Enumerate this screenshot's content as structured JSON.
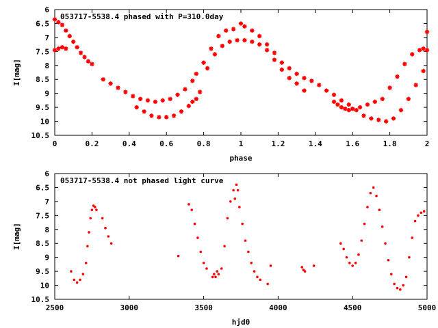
{
  "chart_data": [
    {
      "type": "scatter",
      "title": "053717-5538.4 phased with P=310.0day",
      "xlabel": "phase",
      "ylabel": "I[mag]",
      "xlim": [
        0,
        2
      ],
      "ylim": [
        6,
        10.5
      ],
      "y_inverted": true,
      "x_ticks": [
        "0",
        "0.2",
        "0.4",
        "0.6",
        "0.8",
        "1",
        "1.2",
        "1.4",
        "1.6",
        "1.8",
        "2"
      ],
      "y_ticks": [
        "6",
        "6.5",
        "7",
        "7.5",
        "8",
        "8.5",
        "9",
        "9.5",
        "10",
        "10.5"
      ],
      "grid": false,
      "marker_color": "#ff0000",
      "marker": "star",
      "series": [
        {
          "x": [
            0.0,
            0.02,
            0.04,
            0.06,
            0.08,
            0.1,
            0.12,
            0.14,
            0.16,
            0.18,
            0.2,
            0.26,
            0.3,
            0.34,
            0.38,
            0.42,
            0.46,
            0.5,
            0.54,
            0.58,
            0.62,
            0.66,
            0.7,
            0.74,
            0.76,
            0.8,
            0.84,
            0.88,
            0.92,
            0.96,
            1.0,
            1.02,
            1.06,
            1.1,
            1.14,
            1.18,
            1.22,
            1.26,
            1.3,
            1.34,
            1.38,
            1.42,
            1.46,
            1.5,
            1.54,
            1.58,
            1.62,
            1.66,
            1.7,
            1.74,
            1.78,
            1.82,
            1.86,
            1.9,
            1.94,
            1.98,
            2.0,
            0.0,
            0.02,
            0.04,
            0.06,
            0.44,
            0.48,
            0.52,
            0.56,
            0.6,
            0.64,
            0.68,
            0.72,
            0.74,
            0.76,
            0.78,
            0.82,
            0.86,
            0.9,
            0.94,
            0.98,
            1.02,
            1.06,
            1.1,
            1.14,
            1.18,
            1.22,
            1.26,
            1.3,
            1.34,
            1.5,
            1.52,
            1.54,
            1.56,
            1.58,
            1.6,
            1.64,
            1.68,
            1.72,
            1.76,
            1.8,
            1.84,
            1.88,
            1.92,
            1.96,
            1.98,
            2.0
          ],
          "y": [
            6.35,
            6.45,
            6.55,
            6.75,
            6.95,
            7.15,
            7.35,
            7.55,
            7.7,
            7.85,
            7.95,
            8.5,
            8.65,
            8.8,
            8.95,
            9.1,
            9.2,
            9.25,
            9.3,
            9.25,
            9.2,
            9.05,
            8.85,
            8.55,
            8.3,
            7.9,
            7.4,
            6.95,
            6.75,
            6.7,
            6.5,
            6.6,
            6.75,
            6.95,
            7.25,
            7.55,
            7.9,
            8.1,
            8.3,
            8.45,
            8.55,
            8.7,
            8.9,
            9.05,
            9.25,
            9.4,
            9.6,
            9.8,
            9.9,
            9.95,
            10.0,
            9.9,
            9.6,
            9.2,
            8.7,
            8.2,
            6.8,
            7.45,
            7.4,
            7.35,
            7.4,
            9.5,
            9.65,
            9.8,
            9.85,
            9.85,
            9.8,
            9.65,
            9.45,
            9.3,
            9.2,
            8.95,
            8.1,
            7.6,
            7.3,
            7.15,
            7.1,
            7.1,
            7.15,
            7.25,
            7.45,
            7.8,
            8.15,
            8.45,
            8.65,
            8.9,
            9.3,
            9.4,
            9.5,
            9.55,
            9.6,
            9.55,
            9.5,
            9.4,
            9.3,
            9.2,
            8.8,
            8.4,
            7.95,
            7.6,
            7.45,
            7.4,
            7.45
          ]
        }
      ]
    },
    {
      "type": "scatter",
      "title": "053717-5538.4 not phased light curve",
      "xlabel": "hjd0",
      "ylabel": "I[mag]",
      "xlim": [
        2500,
        5000
      ],
      "ylim": [
        6,
        10.5
      ],
      "y_inverted": true,
      "x_ticks": [
        "2500",
        "3000",
        "3500",
        "4000",
        "4500",
        "5000"
      ],
      "y_ticks": [
        "6",
        "6.5",
        "7",
        "7.5",
        "8",
        "8.5",
        "9",
        "9.5",
        "10",
        "10.5"
      ],
      "grid": false,
      "marker_color": "#ff0000",
      "marker": "dot",
      "series": [
        {
          "x": [
            2610,
            2630,
            2650,
            2670,
            2690,
            2710,
            2720,
            2730,
            2740,
            2750,
            2760,
            2770,
            2780,
            2820,
            2840,
            2860,
            2880,
            3330,
            3400,
            3420,
            3440,
            3460,
            3480,
            3500,
            3520,
            3560,
            3570,
            3580,
            3590,
            3600,
            3620,
            3640,
            3660,
            3680,
            3700,
            3710,
            3720,
            3730,
            3740,
            3760,
            3780,
            3800,
            3820,
            3840,
            3860,
            3880,
            3930,
            3950,
            4160,
            4170,
            4180,
            4240,
            4420,
            4440,
            4460,
            4480,
            4500,
            4520,
            4540,
            4560,
            4580,
            4600,
            4620,
            4640,
            4660,
            4680,
            4700,
            4720,
            4740,
            4760,
            4780,
            4800,
            4820,
            4840,
            4860,
            4880,
            4900,
            4920,
            4940,
            4960,
            4980
          ],
          "y": [
            9.5,
            9.8,
            9.9,
            9.8,
            9.6,
            9.2,
            8.6,
            8.1,
            7.6,
            7.3,
            7.15,
            7.2,
            7.3,
            7.6,
            7.95,
            8.25,
            8.5,
            8.95,
            7.1,
            7.3,
            7.8,
            8.3,
            8.8,
            9.2,
            9.4,
            9.7,
            9.6,
            9.7,
            9.5,
            9.6,
            9.4,
            8.6,
            7.6,
            7.0,
            6.6,
            6.9,
            6.4,
            6.6,
            7.2,
            7.8,
            8.4,
            8.8,
            9.2,
            9.5,
            9.7,
            9.8,
            9.95,
            9.3,
            9.35,
            9.45,
            9.5,
            9.3,
            8.5,
            8.7,
            9.0,
            9.2,
            9.3,
            9.2,
            8.9,
            8.4,
            7.8,
            7.2,
            6.7,
            6.5,
            6.8,
            7.3,
            7.9,
            8.5,
            9.1,
            9.6,
            9.95,
            10.1,
            10.15,
            10.0,
            9.7,
            9.0,
            8.3,
            7.7,
            7.5,
            7.4,
            7.35
          ]
        }
      ]
    }
  ]
}
